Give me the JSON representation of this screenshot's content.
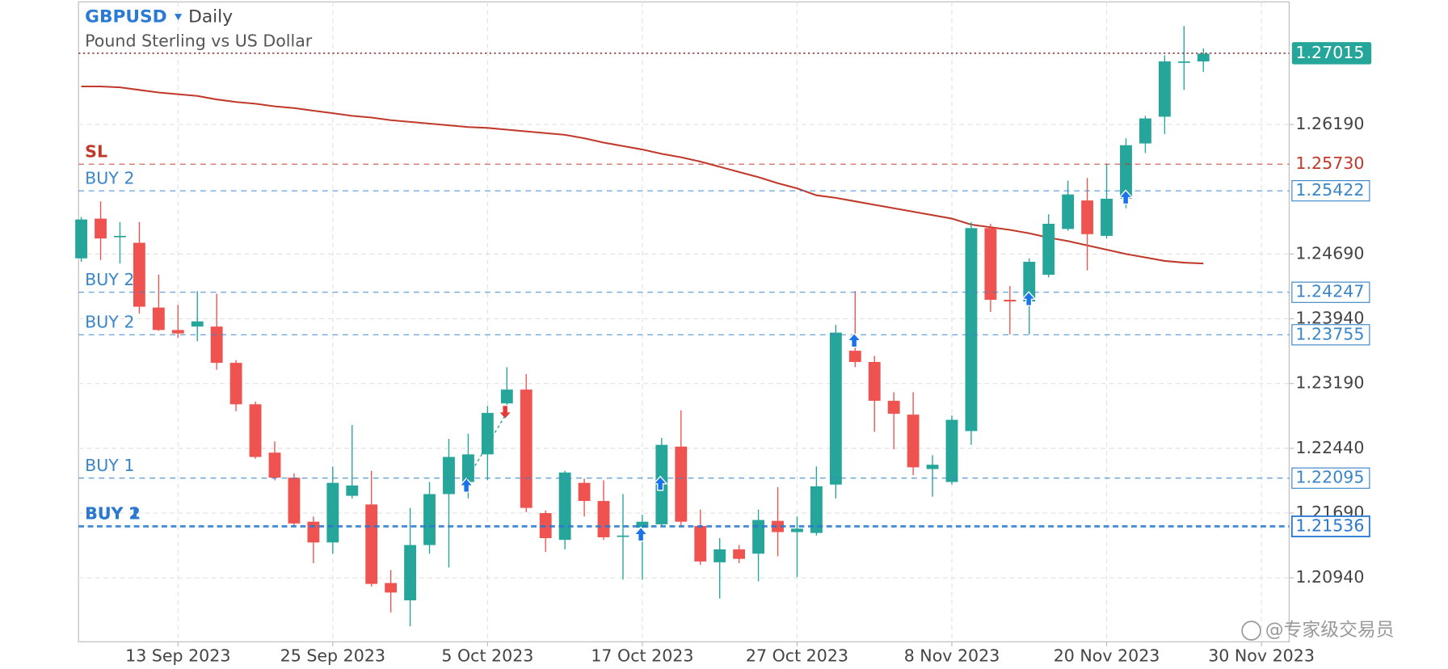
{
  "chart_data": {
    "type": "candlestick",
    "title": "GBPUSD",
    "interval": "Daily",
    "subtitle": "Pound Sterling vs US Dollar",
    "watermark": "@专家级交易员",
    "up_color": "#26a69a",
    "down_color": "#ef5350",
    "grid": true,
    "candles": {
      "x": [
        "2023-09-06",
        "2023-09-07",
        "2023-09-08",
        "2023-09-11",
        "2023-09-12",
        "2023-09-13",
        "2023-09-14",
        "2023-09-15",
        "2023-09-18",
        "2023-09-19",
        "2023-09-20",
        "2023-09-21",
        "2023-09-22",
        "2023-09-25",
        "2023-09-26",
        "2023-09-27",
        "2023-09-28",
        "2023-09-29",
        "2023-10-02",
        "2023-10-03",
        "2023-10-04",
        "2023-10-05",
        "2023-10-06",
        "2023-10-09",
        "2023-10-10",
        "2023-10-11",
        "2023-10-12",
        "2023-10-13",
        "2023-10-16",
        "2023-10-17",
        "2023-10-18",
        "2023-10-19",
        "2023-10-20",
        "2023-10-23",
        "2023-10-24",
        "2023-10-25",
        "2023-10-26",
        "2023-10-27",
        "2023-10-30",
        "2023-10-31",
        "2023-11-01",
        "2023-11-02",
        "2023-11-03",
        "2023-11-06",
        "2023-11-07",
        "2023-11-08",
        "2023-11-09",
        "2023-11-10",
        "2023-11-13",
        "2023-11-14",
        "2023-11-15",
        "2023-11-16",
        "2023-11-17",
        "2023-11-20",
        "2023-11-21",
        "2023-11-22",
        "2023-11-23",
        "2023-11-24",
        "2023-11-27"
      ],
      "open": [
        1.2464,
        1.251,
        1.249,
        1.2482,
        1.2407,
        1.2381,
        1.2385,
        1.2385,
        1.2343,
        1.2295,
        1.2239,
        1.221,
        1.2159,
        1.2135,
        1.2189,
        1.2179,
        1.2088,
        1.2068,
        1.2132,
        1.2191,
        1.2205,
        1.2237,
        1.2296,
        1.2312,
        1.2169,
        1.2138,
        1.2204,
        1.2183,
        1.2142,
        1.2152,
        1.2156,
        1.2246,
        1.2154,
        1.2112,
        1.2127,
        1.2122,
        1.216,
        1.2147,
        1.2146,
        1.2202,
        1.2357,
        1.2344,
        1.2299,
        1.2283,
        1.222,
        1.2205,
        1.2264,
        1.2499,
        1.2416,
        1.2414,
        1.2445,
        1.2498,
        1.2531,
        1.249,
        1.2533,
        1.2597,
        1.2628,
        1.2691,
        1.2692
      ],
      "high": [
        1.2512,
        1.253,
        1.2506,
        1.2506,
        1.2445,
        1.241,
        1.2426,
        1.2423,
        1.2346,
        1.2298,
        1.2252,
        1.2215,
        1.2165,
        1.2223,
        1.2271,
        1.2218,
        1.2103,
        1.2175,
        1.2205,
        1.2255,
        1.2261,
        1.2293,
        1.2338,
        1.233,
        1.2172,
        1.2218,
        1.2209,
        1.2207,
        1.2191,
        1.2167,
        1.2256,
        1.2288,
        1.2173,
        1.214,
        1.2132,
        1.2173,
        1.2199,
        1.2165,
        1.2223,
        1.2387,
        1.2426,
        1.2351,
        1.2309,
        1.2309,
        1.2236,
        1.2282,
        1.2506,
        1.2504,
        1.2432,
        1.2464,
        1.2515,
        1.2554,
        1.2557,
        1.2573,
        1.2603,
        1.2629,
        1.2699,
        1.2733,
        1.2707
      ],
      "low": [
        1.246,
        1.2462,
        1.2458,
        1.24,
        1.238,
        1.2372,
        1.2368,
        1.2335,
        1.2287,
        1.2232,
        1.2207,
        1.2154,
        1.2111,
        1.2122,
        1.2186,
        1.2084,
        1.2054,
        1.2038,
        1.2122,
        1.2106,
        1.2186,
        1.2207,
        1.2282,
        1.217,
        1.2124,
        1.2127,
        1.2165,
        1.2138,
        1.2092,
        1.2092,
        1.2154,
        1.2154,
        1.2109,
        1.207,
        1.2111,
        1.209,
        1.2119,
        1.2095,
        1.2143,
        1.2186,
        1.2338,
        1.2263,
        1.2243,
        1.2213,
        1.2188,
        1.2202,
        1.2248,
        1.2402,
        1.2376,
        1.2376,
        1.2442,
        1.2496,
        1.245,
        1.2487,
        1.2522,
        1.2586,
        1.2608,
        1.2659,
        1.268
      ],
      "close": [
        1.2509,
        1.2487,
        1.249,
        1.2408,
        1.2381,
        1.2377,
        1.2391,
        1.2343,
        1.2295,
        1.2234,
        1.221,
        1.2157,
        1.2135,
        1.2204,
        1.2201,
        1.2087,
        1.2077,
        1.2132,
        1.2191,
        1.2234,
        1.2237,
        1.2285,
        1.2312,
        1.2175,
        1.214,
        1.2216,
        1.2183,
        1.2141,
        1.2143,
        1.2159,
        1.2248,
        1.2159,
        1.2113,
        1.2127,
        1.2116,
        1.2161,
        1.2147,
        1.2151,
        1.22,
        1.2378,
        1.2344,
        1.2299,
        1.2284,
        1.2222,
        1.2225,
        1.2277,
        1.2499,
        1.2416,
        1.2414,
        1.246,
        1.2504,
        1.2538,
        1.2492,
        1.2533,
        1.2595,
        1.2626,
        1.2692,
        1.2692,
        1.2701
      ]
    },
    "moving_average": {
      "color": "#c0392b",
      "values": [
        1.2663,
        1.2663,
        1.2662,
        1.2659,
        1.2656,
        1.2654,
        1.2652,
        1.2648,
        1.2645,
        1.2643,
        1.264,
        1.2638,
        1.2635,
        1.2632,
        1.2629,
        1.2627,
        1.2624,
        1.2622,
        1.262,
        1.2618,
        1.2616,
        1.2615,
        1.2613,
        1.2611,
        1.2609,
        1.2607,
        1.2603,
        1.2598,
        1.2594,
        1.259,
        1.2585,
        1.2581,
        1.2576,
        1.257,
        1.2564,
        1.2558,
        1.2551,
        1.2545,
        1.2537,
        1.2534,
        1.253,
        1.2526,
        1.2522,
        1.2518,
        1.2514,
        1.251,
        1.2503,
        1.25,
        1.2497,
        1.2493,
        1.2488,
        1.2484,
        1.2479,
        1.2474,
        1.2469,
        1.2465,
        1.2461,
        1.2459,
        1.2458
      ]
    },
    "current_price": {
      "value": 1.27015,
      "label": "1.27015",
      "color": "#26a69a",
      "line_color": "#8b4a4a"
    },
    "levels": [
      {
        "labels": [
          "SL"
        ],
        "value": 1.2573,
        "value_label": "1.25730",
        "color": "#c0392b",
        "boxed": false,
        "width": 1
      },
      {
        "labels": [
          "BUY 2"
        ],
        "value": 1.25422,
        "value_label": "1.25422",
        "color": "#3a86c8",
        "boxed": true,
        "width": 1
      },
      {
        "labels": [
          "BUY 2"
        ],
        "value": 1.24247,
        "value_label": "1.24247",
        "color": "#3a86c8",
        "boxed": true,
        "width": 1
      },
      {
        "labels": [
          "BUY 2"
        ],
        "value": 1.23755,
        "value_label": "1.23755",
        "color": "#3a86c8",
        "boxed": true,
        "width": 1
      },
      {
        "labels": [
          "BUY 1"
        ],
        "value": 1.22095,
        "value_label": "1.22095",
        "color": "#3a86c8",
        "boxed": true,
        "width": 1
      },
      {
        "labels": [
          "BUY 1",
          "BUY 2"
        ],
        "value": 1.21536,
        "value_label": "1.21536",
        "color": "#2a78d0",
        "boxed": true,
        "width": 2.5
      }
    ],
    "ylim": [
      1.202,
      1.2761
    ],
    "yticks": [
      {
        "value": 1.2094,
        "label": "1.20940"
      },
      {
        "value": 1.2169,
        "label": "1.21690"
      },
      {
        "value": 1.2244,
        "label": "1.22440"
      },
      {
        "value": 1.2319,
        "label": "1.23190"
      },
      {
        "value": 1.2394,
        "label": "1.23940"
      },
      {
        "value": 1.2469,
        "label": "1.24690"
      },
      {
        "value": 1.2619,
        "label": "1.26190"
      }
    ],
    "xticks": [
      {
        "value": "2023-09-13",
        "label": "13 Sep 2023"
      },
      {
        "value": "2023-09-25",
        "label": "25 Sep 2023"
      },
      {
        "value": "2023-10-05",
        "label": "5 Oct 2023"
      },
      {
        "value": "2023-10-17",
        "label": "17 Oct 2023"
      },
      {
        "value": "2023-10-27",
        "label": "27 Oct 2023"
      },
      {
        "value": "2023-11-08",
        "label": "8 Nov 2023"
      },
      {
        "value": "2023-11-20",
        "label": "20 Nov 2023"
      },
      {
        "value": "2023-11-30",
        "label": "30 Nov 2023"
      }
    ]
  }
}
